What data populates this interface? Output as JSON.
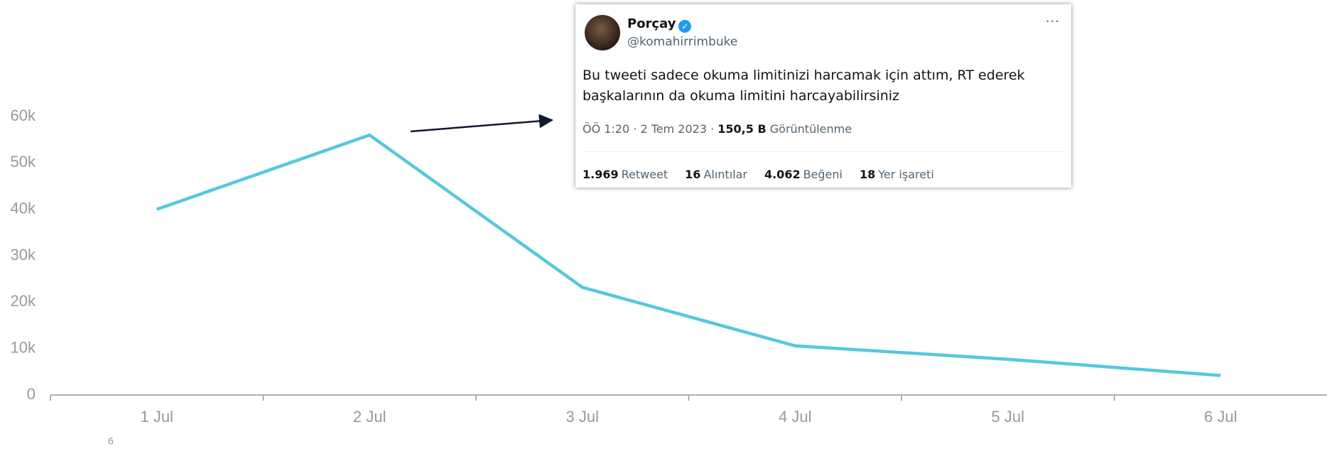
{
  "chart_data": {
    "type": "line",
    "categories": [
      "1 Jul",
      "2 Jul",
      "3 Jul",
      "4 Jul",
      "5 Jul",
      "6 Jul"
    ],
    "values": [
      40000,
      56000,
      23200,
      10600,
      7700,
      4200
    ],
    "color": "#56c8dc",
    "ylim": [
      0,
      60000
    ],
    "yticks": [
      0,
      {
        "value": 10000,
        "label": "10k"
      },
      {
        "value": 20000,
        "label": "20k"
      },
      {
        "value": 30000,
        "label": "30k"
      },
      {
        "value": 40000,
        "label": "40k"
      },
      {
        "value": 50000,
        "label": "50k"
      },
      {
        "value": 60000,
        "label": "60k"
      }
    ],
    "grid": false,
    "footnote": "6"
  },
  "tweet": {
    "name": "Porçay",
    "handle": "@komahirrimbuke",
    "text": [
      "Bu tweeti sadece okuma limitinizi harcamak için attım, RT ederek",
      "başkalarının da okuma limitini harcayabilirsiniz"
    ],
    "time": "ÖÖ 1:20 · 2 Tem 2023 ·",
    "views": "150,5 B",
    "views_label": "Görüntülenme",
    "stats": [
      {
        "count": "1.969",
        "label": "Retweet"
      },
      {
        "count": "16",
        "label": "Alıntılar"
      },
      {
        "count": "4.062",
        "label": "Beğeni"
      },
      {
        "count": "18",
        "label": "Yer işareti"
      }
    ]
  }
}
